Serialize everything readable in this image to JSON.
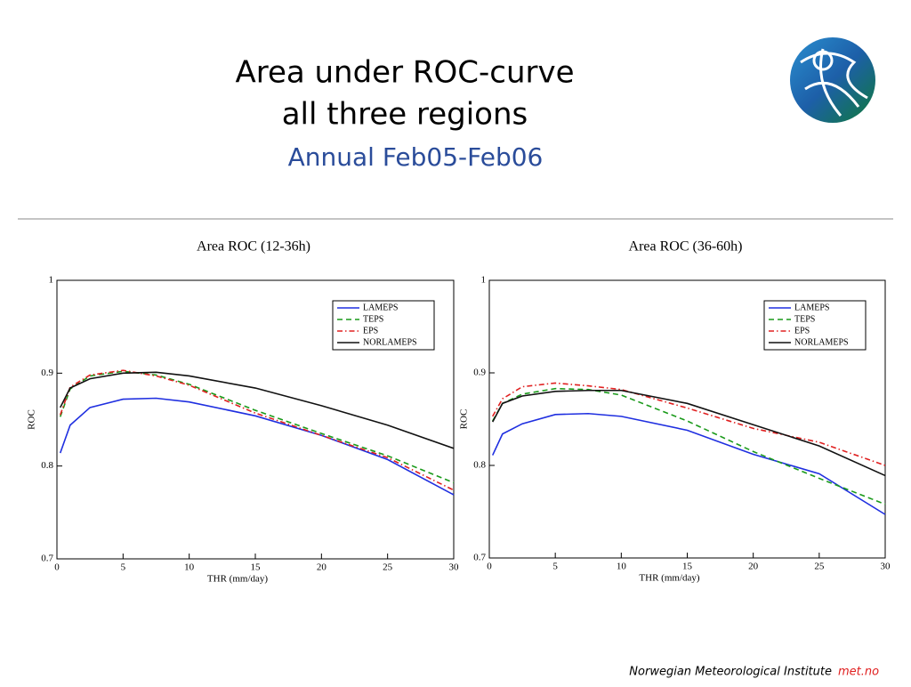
{
  "slide": {
    "title": [
      "Area under ROC-curve",
      "all three regions"
    ],
    "subtitle": "Annual Feb05-Feb06",
    "footer": "Norwegian Meteorological Institute",
    "footer_brand": "met.no"
  },
  "chart_data": [
    {
      "type": "line",
      "title": "Area ROC (12-36h)",
      "x_label": "THR (mm/day)",
      "y_label": "ROC",
      "x": [
        0.25,
        1,
        2.5,
        5,
        7.5,
        10,
        15,
        20,
        25,
        30
      ],
      "xlim": [
        0,
        30
      ],
      "xticks": [
        0,
        5,
        10,
        15,
        20,
        25,
        30
      ],
      "ylim": [
        0.7,
        1
      ],
      "yticks": [
        0.7,
        0.8,
        0.9,
        1
      ],
      "legend": "upper right",
      "series": [
        {
          "name": "LAMEPS",
          "color": "#1f2fe0",
          "dash": "solid",
          "values": [
            0.814,
            0.844,
            0.863,
            0.872,
            0.873,
            0.869,
            0.854,
            0.833,
            0.807,
            0.769
          ]
        },
        {
          "name": "TEPS",
          "color": "#1a9a1a",
          "dash": "dashed",
          "values": [
            0.853,
            0.883,
            0.897,
            0.902,
            0.898,
            0.888,
            0.86,
            0.835,
            0.811,
            0.782
          ]
        },
        {
          "name": "EPS",
          "color": "#e02020",
          "dash": "dashdot",
          "values": [
            0.855,
            0.885,
            0.898,
            0.903,
            0.897,
            0.887,
            0.857,
            0.833,
            0.809,
            0.774
          ]
        },
        {
          "name": "NORLAMEPS",
          "color": "#111111",
          "dash": "solid",
          "values": [
            0.863,
            0.884,
            0.894,
            0.9,
            0.901,
            0.897,
            0.884,
            0.865,
            0.844,
            0.819
          ]
        }
      ]
    },
    {
      "type": "line",
      "title": "Area ROC (36-60h)",
      "x_label": "THR (mm/day)",
      "y_label": "ROC",
      "x": [
        0.25,
        1,
        2.5,
        5,
        7.5,
        10,
        15,
        20,
        25,
        30
      ],
      "xlim": [
        0,
        30
      ],
      "xticks": [
        0,
        5,
        10,
        15,
        20,
        25,
        30
      ],
      "ylim": [
        0.7,
        1
      ],
      "yticks": [
        0.7,
        0.8,
        0.9,
        1
      ],
      "legend": "upper right",
      "series": [
        {
          "name": "LAMEPS",
          "color": "#1f2fe0",
          "dash": "solid",
          "values": [
            0.811,
            0.834,
            0.845,
            0.855,
            0.856,
            0.853,
            0.838,
            0.812,
            0.791,
            0.747
          ]
        },
        {
          "name": "TEPS",
          "color": "#1a9a1a",
          "dash": "dashed",
          "values": [
            0.848,
            0.867,
            0.877,
            0.883,
            0.882,
            0.876,
            0.848,
            0.815,
            0.786,
            0.758
          ]
        },
        {
          "name": "EPS",
          "color": "#e02020",
          "dash": "dashdot",
          "values": [
            0.853,
            0.872,
            0.885,
            0.889,
            0.886,
            0.882,
            0.862,
            0.84,
            0.825,
            0.8
          ]
        },
        {
          "name": "NORLAMEPS",
          "color": "#111111",
          "dash": "solid",
          "values": [
            0.847,
            0.867,
            0.875,
            0.88,
            0.881,
            0.881,
            0.867,
            0.844,
            0.821,
            0.789
          ]
        }
      ]
    }
  ]
}
